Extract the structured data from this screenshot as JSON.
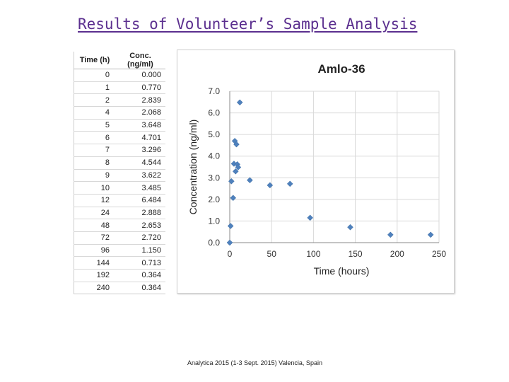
{
  "slide": {
    "title": "Results of Volunteer’s Sample Analysis",
    "footer": "Analytica 2015 (1-3 Sept. 2015) Valencia, Spain"
  },
  "table": {
    "headers": [
      "Time (h)",
      "Conc. (ng/ml)"
    ],
    "rows": [
      [
        "0",
        "0.000"
      ],
      [
        "1",
        "0.770"
      ],
      [
        "2",
        "2.839"
      ],
      [
        "4",
        "2.068"
      ],
      [
        "5",
        "3.648"
      ],
      [
        "6",
        "4.701"
      ],
      [
        "7",
        "3.296"
      ],
      [
        "8",
        "4.544"
      ],
      [
        "9",
        "3.622"
      ],
      [
        "10",
        "3.485"
      ],
      [
        "12",
        "6.484"
      ],
      [
        "24",
        "2.888"
      ],
      [
        "48",
        "2.653"
      ],
      [
        "72",
        "2.720"
      ],
      [
        "96",
        "1.150"
      ],
      [
        "144",
        "0.713"
      ],
      [
        "192",
        "0.364"
      ],
      [
        "240",
        "0.364"
      ]
    ]
  },
  "chart_data": {
    "type": "scatter",
    "title": "Amlo-36",
    "xlabel": "Time (hours)",
    "ylabel": "Concentration (ng/ml)",
    "xlim": [
      0,
      250
    ],
    "ylim": [
      0,
      7
    ],
    "x_ticks": [
      "0",
      "50",
      "100",
      "150",
      "200",
      "250"
    ],
    "y_ticks": [
      "0.0",
      "1.0",
      "2.0",
      "3.0",
      "4.0",
      "5.0",
      "6.0",
      "7.0"
    ],
    "marker_color": "#4f81bd",
    "series": [
      {
        "name": "Amlo-36",
        "x": [
          0,
          1,
          2,
          4,
          5,
          6,
          7,
          8,
          9,
          10,
          12,
          24,
          48,
          72,
          96,
          144,
          192,
          240
        ],
        "y": [
          0.0,
          0.77,
          2.839,
          2.068,
          3.648,
          4.701,
          3.296,
          4.544,
          3.622,
          3.485,
          6.484,
          2.888,
          2.653,
          2.72,
          1.15,
          0.713,
          0.364,
          0.364
        ]
      }
    ]
  }
}
